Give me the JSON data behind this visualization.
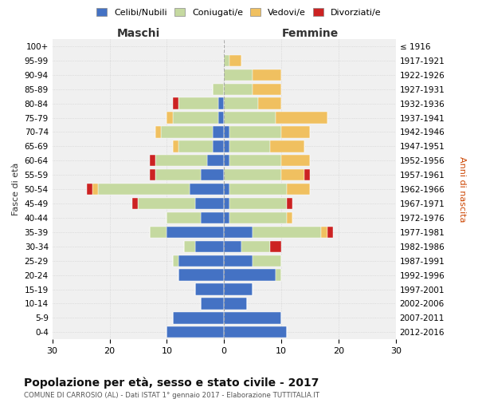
{
  "age_groups": [
    "0-4",
    "5-9",
    "10-14",
    "15-19",
    "20-24",
    "25-29",
    "30-34",
    "35-39",
    "40-44",
    "45-49",
    "50-54",
    "55-59",
    "60-64",
    "65-69",
    "70-74",
    "75-79",
    "80-84",
    "85-89",
    "90-94",
    "95-99",
    "100+"
  ],
  "birth_years": [
    "2012-2016",
    "2007-2011",
    "2002-2006",
    "1997-2001",
    "1992-1996",
    "1987-1991",
    "1982-1986",
    "1977-1981",
    "1972-1976",
    "1967-1971",
    "1962-1966",
    "1957-1961",
    "1952-1956",
    "1947-1951",
    "1942-1946",
    "1937-1941",
    "1932-1936",
    "1927-1931",
    "1922-1926",
    "1917-1921",
    "≤ 1916"
  ],
  "colors": {
    "celibi": "#4472C4",
    "coniugati": "#c5d9a0",
    "vedovi": "#f0c060",
    "divorziati": "#cc2222"
  },
  "males": {
    "celibi": [
      10,
      9,
      4,
      5,
      8,
      8,
      5,
      10,
      4,
      5,
      6,
      4,
      3,
      2,
      2,
      1,
      1,
      0,
      0,
      0,
      0
    ],
    "coniugati": [
      0,
      0,
      0,
      0,
      0,
      1,
      2,
      3,
      6,
      10,
      16,
      8,
      9,
      6,
      9,
      8,
      7,
      2,
      0,
      0,
      0
    ],
    "vedovi": [
      0,
      0,
      0,
      0,
      0,
      0,
      0,
      0,
      0,
      0,
      1,
      0,
      0,
      1,
      1,
      1,
      0,
      0,
      0,
      0,
      0
    ],
    "divorziati": [
      0,
      0,
      0,
      0,
      0,
      0,
      0,
      0,
      0,
      1,
      1,
      1,
      1,
      0,
      0,
      0,
      1,
      0,
      0,
      0,
      0
    ]
  },
  "females": {
    "nubili": [
      11,
      10,
      4,
      5,
      9,
      5,
      3,
      5,
      1,
      1,
      1,
      0,
      1,
      1,
      1,
      0,
      0,
      0,
      0,
      0,
      0
    ],
    "coniugate": [
      0,
      0,
      0,
      0,
      1,
      5,
      5,
      12,
      10,
      10,
      10,
      10,
      9,
      7,
      9,
      9,
      6,
      5,
      5,
      1,
      0
    ],
    "vedove": [
      0,
      0,
      0,
      0,
      0,
      0,
      0,
      1,
      1,
      0,
      4,
      4,
      5,
      6,
      5,
      9,
      4,
      5,
      5,
      2,
      0
    ],
    "divorziate": [
      0,
      0,
      0,
      0,
      0,
      0,
      2,
      1,
      0,
      1,
      0,
      1,
      0,
      0,
      0,
      0,
      0,
      0,
      0,
      0,
      0
    ]
  },
  "xlim": 30,
  "title": "Popolazione per età, sesso e stato civile - 2017",
  "subtitle": "COMUNE DI CARROSIO (AL) - Dati ISTAT 1° gennaio 2017 - Elaborazione TUTTITALIA.IT",
  "ylabel_left": "Fasce di età",
  "ylabel_right": "Anni di nascita",
  "xlabel_left": "Maschi",
  "xlabel_right": "Femmine",
  "legend_labels": [
    "Celibi/Nubili",
    "Coniugati/e",
    "Vedovi/e",
    "Divorziati/e"
  ],
  "background_color": "#ffffff",
  "grid_color": "#cccccc",
  "bar_height": 0.8
}
